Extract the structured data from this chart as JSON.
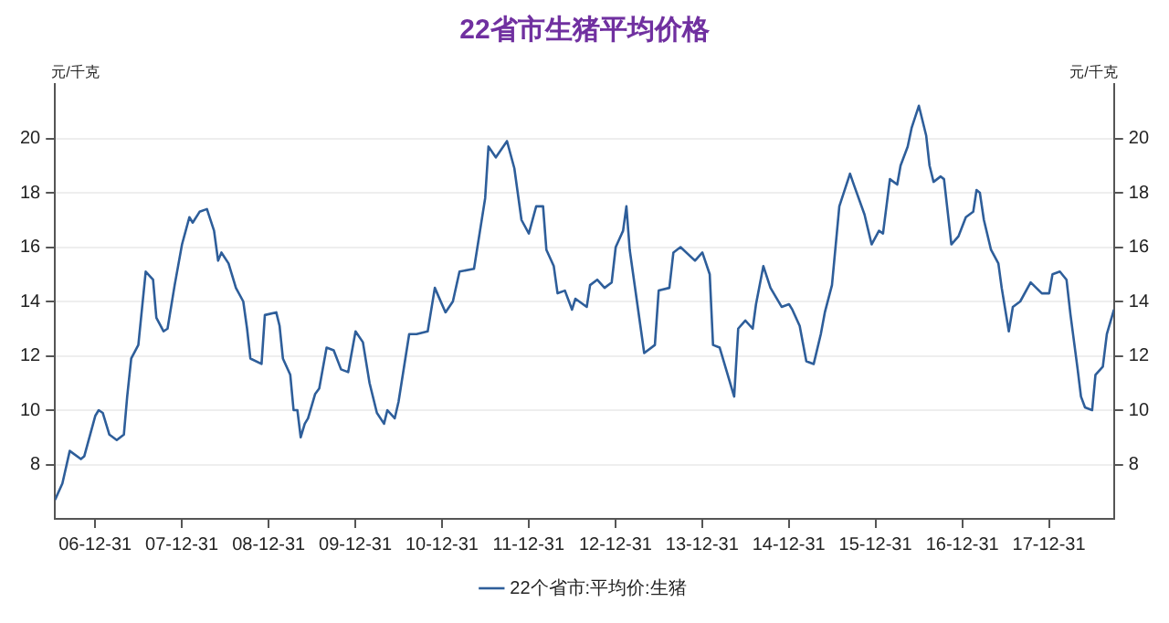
{
  "chart_data": {
    "type": "line",
    "title": "22省市生猪平均价格",
    "ylabel": "元/千克",
    "y2label": "元/千克",
    "x": [
      "2006-07-15",
      "2006-08-15",
      "2006-09-15",
      "2006-11-01",
      "2006-11-15",
      "2007-01-01",
      "2007-01-15",
      "2007-02-01",
      "2007-03-01",
      "2007-04-01",
      "2007-05-01",
      "2007-05-15",
      "2007-06-01",
      "2007-07-01",
      "2007-08-01",
      "2007-09-01",
      "2007-09-15",
      "2007-10-15",
      "2007-11-01",
      "2007-12-01",
      "2008-01-01",
      "2008-02-01",
      "2008-02-15",
      "2008-03-15",
      "2008-04-15",
      "2008-05-15",
      "2008-06-01",
      "2008-06-15",
      "2008-07-15",
      "2008-08-15",
      "2008-09-15",
      "2008-10-01",
      "2008-10-15",
      "2008-12-01",
      "2008-12-15",
      "2009-02-01",
      "2009-02-15",
      "2009-03-01",
      "2009-04-01",
      "2009-04-15",
      "2009-05-01",
      "2009-05-15",
      "2009-06-01",
      "2009-06-15",
      "2009-07-15",
      "2009-08-01",
      "2009-09-01",
      "2009-10-01",
      "2009-11-01",
      "2009-12-01",
      "2010-01-01",
      "2010-02-01",
      "2010-03-01",
      "2010-04-01",
      "2010-05-01",
      "2010-05-15",
      "2010-06-15",
      "2010-07-01",
      "2010-08-15",
      "2010-09-15",
      "2010-11-01",
      "2010-12-01",
      "2011-01-15",
      "2011-02-15",
      "2011-03-15",
      "2011-05-15",
      "2011-07-01",
      "2011-07-15",
      "2011-08-15",
      "2011-10-01",
      "2011-11-01",
      "2011-12-01",
      "2012-01-01",
      "2012-02-01",
      "2012-03-01",
      "2012-03-15",
      "2012-04-15",
      "2012-05-01",
      "2012-06-01",
      "2012-07-01",
      "2012-07-15",
      "2012-09-01",
      "2012-09-15",
      "2012-10-15",
      "2012-11-15",
      "2012-12-15",
      "2013-01-01",
      "2013-02-01",
      "2013-02-15",
      "2013-03-01",
      "2013-04-15",
      "2013-05-01",
      "2013-06-15",
      "2013-07-01",
      "2013-08-15",
      "2013-09-01",
      "2013-10-01",
      "2013-12-01",
      "2014-01-01",
      "2014-02-01",
      "2014-02-15",
      "2014-03-15",
      "2014-05-15",
      "2014-06-01",
      "2014-07-01",
      "2014-08-01",
      "2014-08-15",
      "2014-09-15",
      "2014-10-15",
      "2014-12-01",
      "2015-01-01",
      "2015-01-15",
      "2015-02-15",
      "2015-03-15",
      "2015-04-15",
      "2015-05-15",
      "2015-06-01",
      "2015-07-01",
      "2015-08-01",
      "2015-09-15",
      "2015-10-01",
      "2015-11-15",
      "2015-12-15",
      "2016-01-15",
      "2016-02-01",
      "2016-03-01",
      "2016-04-01",
      "2016-04-15",
      "2016-05-15",
      "2016-06-01",
      "2016-07-01",
      "2016-08-01",
      "2016-08-15",
      "2016-09-01",
      "2016-10-01",
      "2016-10-15",
      "2016-11-15",
      "2016-12-15",
      "2017-01-15",
      "2017-02-15",
      "2017-03-01",
      "2017-03-15",
      "2017-04-01",
      "2017-05-01",
      "2017-06-01",
      "2017-06-15",
      "2017-07-15",
      "2017-08-01",
      "2017-09-01",
      "2017-10-15",
      "2017-12-01",
      "2018-01-01",
      "2018-01-15",
      "2018-02-15",
      "2018-03-15",
      "2018-04-01",
      "2018-05-01",
      "2018-05-15",
      "2018-06-01",
      "2018-07-01",
      "2018-07-15",
      "2018-08-15",
      "2018-09-01",
      "2018-10-01"
    ],
    "series": [
      {
        "name": "22个省市:平均价:生猪",
        "color": "#2e5e9a",
        "values": [
          6.7,
          7.3,
          8.5,
          8.2,
          8.3,
          9.8,
          10.0,
          9.9,
          9.1,
          8.9,
          9.1,
          10.5,
          11.9,
          12.4,
          15.1,
          14.8,
          13.4,
          12.9,
          13.0,
          14.6,
          16.1,
          17.1,
          16.9,
          17.3,
          17.4,
          16.6,
          15.5,
          15.8,
          15.4,
          14.5,
          14.0,
          13.0,
          11.9,
          11.7,
          13.5,
          13.6,
          13.1,
          11.9,
          11.3,
          10.0,
          10.0,
          9.0,
          9.5,
          9.7,
          10.6,
          10.8,
          12.3,
          12.2,
          11.5,
          11.4,
          12.9,
          12.5,
          11.0,
          9.9,
          9.5,
          10.0,
          9.7,
          10.3,
          12.8,
          12.8,
          12.9,
          14.5,
          13.6,
          14.0,
          15.1,
          15.2,
          17.8,
          19.7,
          19.3,
          19.9,
          18.9,
          17.0,
          16.5,
          17.5,
          17.5,
          15.9,
          15.3,
          14.3,
          14.4,
          13.7,
          14.1,
          13.8,
          14.6,
          14.8,
          14.5,
          14.7,
          16.0,
          16.6,
          17.5,
          15.9,
          13.1,
          12.1,
          12.4,
          14.4,
          14.5,
          15.8,
          16.0,
          15.5,
          15.8,
          15.0,
          12.4,
          12.3,
          10.5,
          13.0,
          13.3,
          13.0,
          13.9,
          15.3,
          14.5,
          13.8,
          13.9,
          13.7,
          13.1,
          11.8,
          11.7,
          12.8,
          13.6,
          14.6,
          17.5,
          18.7,
          18.3,
          17.2,
          16.1,
          16.6,
          16.5,
          18.5,
          18.3,
          19.0,
          19.7,
          20.4,
          21.2,
          20.1,
          19.0,
          18.4,
          18.6,
          18.5,
          16.1,
          16.4,
          17.1,
          17.3,
          18.1,
          18.0,
          17.0,
          15.9,
          15.4,
          14.5,
          12.9,
          13.8,
          14.0,
          14.7,
          14.3,
          14.3,
          15.0,
          15.1,
          14.8,
          13.5,
          11.5,
          10.5,
          10.1,
          10.0,
          11.3,
          11.6,
          12.8,
          13.7
        ]
      }
    ],
    "xlim": [
      "2006-07-15",
      "2018-10-01"
    ],
    "xticks": [
      {
        "value": "2006-12-31",
        "label": "06-12-31"
      },
      {
        "value": "2007-12-31",
        "label": "07-12-31"
      },
      {
        "value": "2008-12-31",
        "label": "08-12-31"
      },
      {
        "value": "2009-12-31",
        "label": "09-12-31"
      },
      {
        "value": "2010-12-31",
        "label": "10-12-31"
      },
      {
        "value": "2011-12-31",
        "label": "11-12-31"
      },
      {
        "value": "2012-12-31",
        "label": "12-12-31"
      },
      {
        "value": "2013-12-31",
        "label": "13-12-31"
      },
      {
        "value": "2014-12-31",
        "label": "14-12-31"
      },
      {
        "value": "2015-12-31",
        "label": "15-12-31"
      },
      {
        "value": "2016-12-31",
        "label": "16-12-31"
      },
      {
        "value": "2017-12-31",
        "label": "17-12-31"
      }
    ],
    "ylim": [
      6,
      22
    ],
    "yticks": [
      8,
      10,
      12,
      14,
      16,
      18,
      20
    ],
    "y2lim": [
      6,
      22
    ],
    "y2ticks": [
      8,
      10,
      12,
      14,
      16,
      18,
      20
    ],
    "grid": "y",
    "legend": "bottom",
    "marker": "none",
    "line_style": "solid"
  }
}
